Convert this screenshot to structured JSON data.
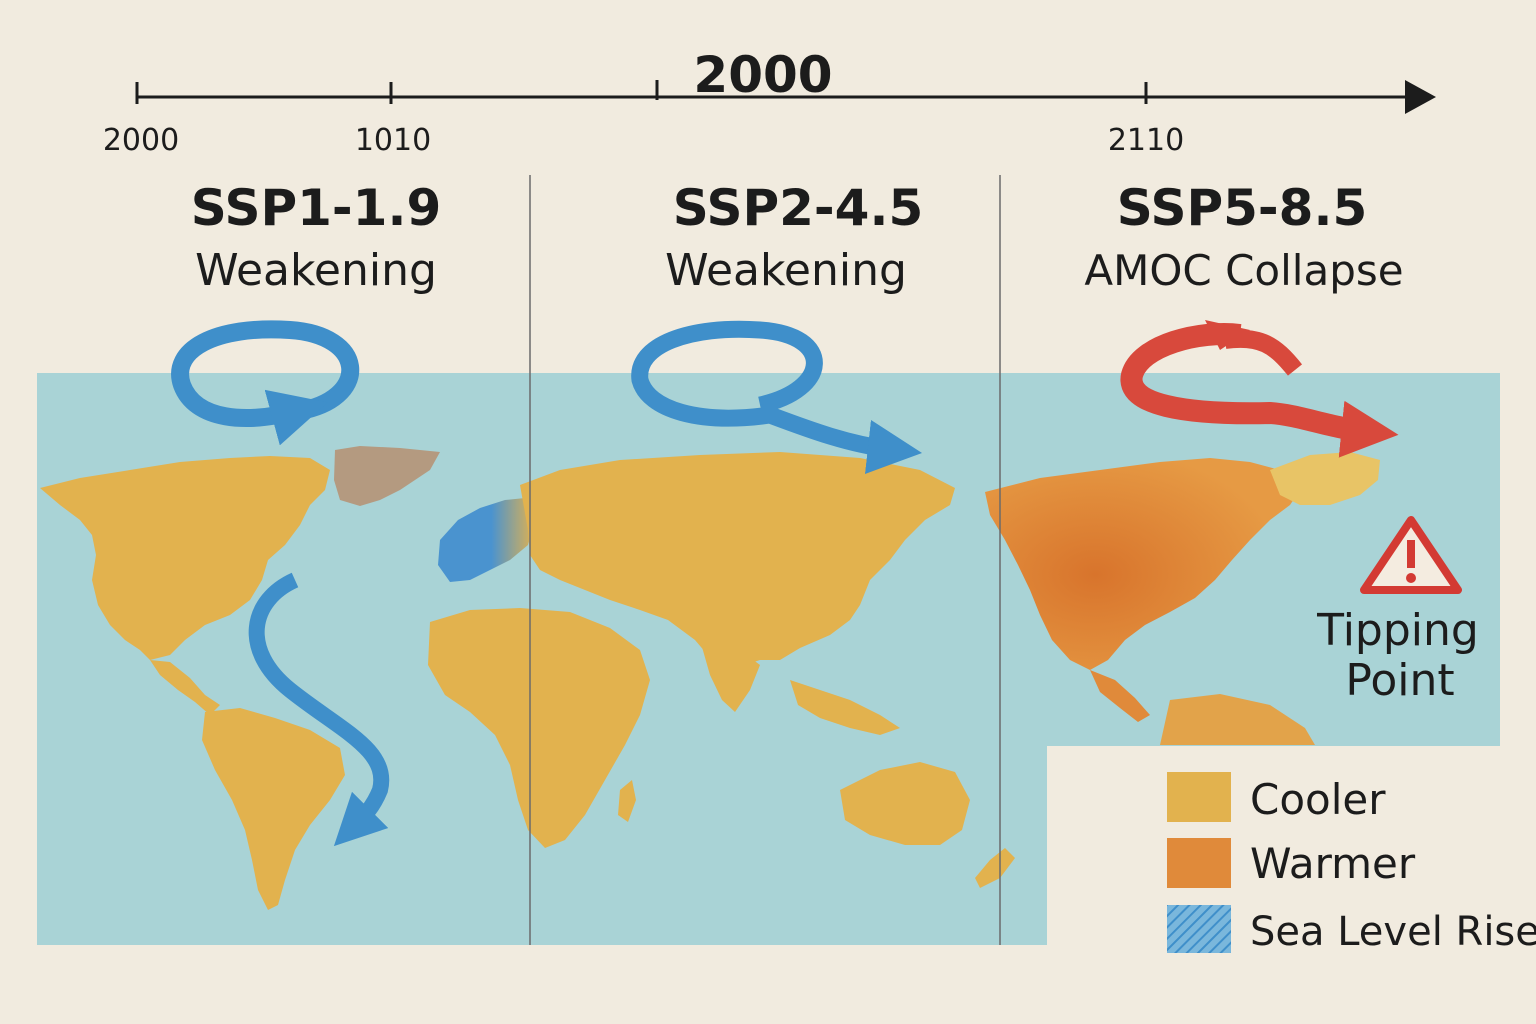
{
  "timeline": {
    "center_label": "2000",
    "ticks": [
      "2000",
      "1010",
      "2110"
    ]
  },
  "scenarios": [
    {
      "title": "SSP1-1.9",
      "subtitle": "Weakening"
    },
    {
      "title": "SSP2-4.5",
      "subtitle": "Weakening"
    },
    {
      "title": "SSP5-8.5",
      "subtitle": "AMOC Collapse"
    }
  ],
  "warning": {
    "label_line1": "Tipping",
    "label_line2": "Point",
    "icon": "warning-triangle-icon"
  },
  "legend": {
    "items": [
      {
        "label": "Cooler",
        "color": "#e2b24e"
      },
      {
        "label": "Warmer",
        "color": "#e08a3a"
      },
      {
        "label": "Sea Level Rise",
        "color": "#5b9fd0"
      }
    ]
  },
  "colors": {
    "ocean": "#a9d3d6",
    "land": "#e2b24e",
    "land_warm": "#e08a3a",
    "current_blue": "#3f8fca",
    "current_red": "#d8493c",
    "greenland": "#b49a80",
    "background": "#f1ebdf"
  }
}
